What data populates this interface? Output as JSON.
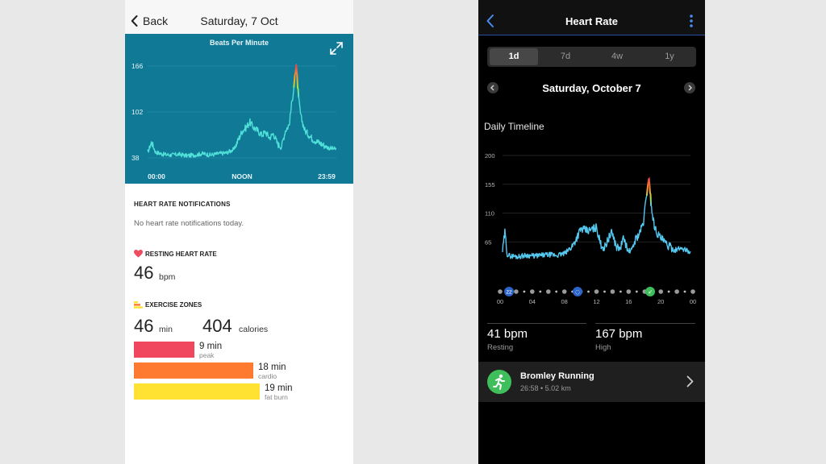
{
  "colors": {
    "fitbit_chart_bg": "#0f7996",
    "fitbit_line": "#4fe0d8",
    "peak": "#f0465e",
    "cardio": "#ff7a31",
    "fat_burn": "#ffe232",
    "garmin_bg": "#000000",
    "garmin_line": "#55c8f0",
    "garmin_accent": "#3fbf5b"
  },
  "fitbit": {
    "nav": {
      "back_label": "Back",
      "date": "Saturday, 7 Oct"
    },
    "chart_title": "Beats Per Minute",
    "notifications": {
      "title": "HEART RATE NOTIFICATIONS",
      "text": "No heart rate notifications today."
    },
    "resting": {
      "title": "RESTING HEART RATE",
      "value": "46",
      "unit": "bpm"
    },
    "exercise": {
      "title": "EXERCISE ZONES",
      "minutes": "46",
      "minutes_unit": "min",
      "calories": "404",
      "calories_unit": "calories",
      "zones": [
        {
          "value": "9 min",
          "label": "peak",
          "minutes": 9
        },
        {
          "value": "18 min",
          "label": "cardio",
          "minutes": 18
        },
        {
          "value": "19 min",
          "label": "fat burn",
          "minutes": 19
        }
      ]
    }
  },
  "garmin": {
    "header": {
      "title": "Heart Rate"
    },
    "ranges": [
      "1d",
      "7d",
      "4w",
      "1y"
    ],
    "active_range": "1d",
    "date": "Saturday, October 7",
    "timeline_title": "Daily Timeline",
    "resting": {
      "value": "41 bpm",
      "label": "Resting"
    },
    "high": {
      "value": "167 bpm",
      "label": "High"
    },
    "activity": {
      "name": "Bromley Running",
      "meta": "26:58 • 5.02 km"
    }
  },
  "chart_data": [
    {
      "type": "line",
      "title": "Beats Per Minute",
      "xlabel": "",
      "ylabel": "",
      "x_tick_labels": [
        "00:00",
        "NOON",
        "23:59"
      ],
      "y_ticks": [
        38,
        102,
        166
      ],
      "ylim": [
        38,
        166
      ],
      "grid": true,
      "series": [
        {
          "x": [
            0,
            0.5,
            1,
            2,
            3,
            4,
            5,
            6,
            7,
            8,
            9,
            10,
            11,
            12,
            12.5,
            13,
            13.5,
            14,
            14.5,
            15,
            15.5,
            16,
            16.5,
            17,
            17.5,
            18,
            18.3,
            18.6,
            18.9,
            19.2,
            19.5,
            20,
            21,
            22,
            23,
            24
          ],
          "y": [
            45,
            60,
            46,
            43,
            42,
            43,
            41,
            42,
            44,
            42,
            44,
            45,
            50,
            75,
            80,
            88,
            80,
            76,
            70,
            74,
            66,
            72,
            58,
            52,
            76,
            84,
            112,
            137,
            168,
            120,
            95,
            76,
            64,
            58,
            52,
            50
          ]
        }
      ]
    },
    {
      "type": "line",
      "title": "",
      "xlabel": "",
      "ylabel": "",
      "x_tick_labels": [
        "00",
        "04",
        "08",
        "12",
        "16",
        "20",
        "00"
      ],
      "y_ticks": [
        65,
        110,
        155,
        200
      ],
      "ylim": [
        20,
        200
      ],
      "grid": true,
      "series": [
        {
          "x": [
            0,
            0.3,
            0.6,
            1,
            2,
            3,
            4,
            5,
            6,
            7,
            8,
            9,
            10,
            11,
            12,
            12.5,
            13,
            13.5,
            14,
            14.5,
            15,
            15.5,
            16,
            16.5,
            17,
            17.5,
            18,
            18.4,
            18.7,
            19,
            19.3,
            19.6,
            20,
            21,
            22,
            23,
            24
          ],
          "y": [
            50,
            80,
            45,
            43,
            42,
            44,
            43,
            44,
            45,
            44,
            47,
            60,
            85,
            82,
            88,
            62,
            55,
            70,
            80,
            58,
            54,
            72,
            50,
            52,
            70,
            78,
            96,
            140,
            167,
            120,
            95,
            82,
            74,
            60,
            52,
            56,
            48
          ]
        }
      ]
    }
  ]
}
